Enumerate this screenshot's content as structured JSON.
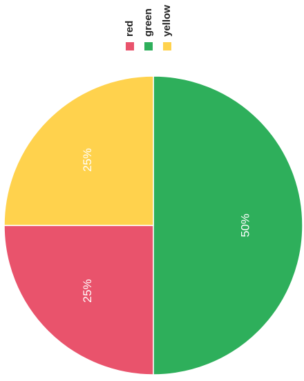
{
  "chart_data": {
    "type": "pie",
    "title": "",
    "legend_placement": "top-right",
    "slices": [
      {
        "label": "red",
        "value": 25,
        "percent_label": "25%",
        "color": "#E9536C"
      },
      {
        "label": "green",
        "value": 50,
        "percent_label": "50%",
        "color": "#2EAF5B"
      },
      {
        "label": "yellow",
        "value": 25,
        "percent_label": "25%",
        "color": "#FFD24D"
      }
    ]
  }
}
